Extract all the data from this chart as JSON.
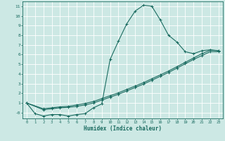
{
  "xlabel": "Humidex (Indice chaleur)",
  "bg_color": "#cce8e4",
  "line_color": "#1a6b60",
  "grid_color": "#ffffff",
  "xlim": [
    -0.5,
    23.5
  ],
  "ylim": [
    -0.6,
    11.5
  ],
  "xticks": [
    0,
    1,
    2,
    3,
    4,
    5,
    6,
    7,
    8,
    9,
    10,
    11,
    12,
    13,
    14,
    15,
    16,
    17,
    18,
    19,
    20,
    21,
    22,
    23
  ],
  "yticks": [
    0,
    1,
    2,
    3,
    4,
    5,
    6,
    7,
    8,
    9,
    10,
    11
  ],
  "ytick_labels": [
    "-0",
    "1",
    "2",
    "3",
    "4",
    "5",
    "6",
    "7",
    "8",
    "9",
    "10",
    "11"
  ],
  "curve1_x": [
    0,
    1,
    2,
    3,
    4,
    5,
    6,
    7,
    8,
    9,
    10,
    11,
    12,
    13,
    14,
    15,
    16,
    17,
    18,
    19,
    20,
    21,
    22,
    23
  ],
  "curve1_y": [
    1.0,
    -0.1,
    -0.35,
    -0.2,
    -0.2,
    -0.35,
    -0.2,
    -0.1,
    0.5,
    0.9,
    5.5,
    7.4,
    9.2,
    10.5,
    11.1,
    11.0,
    9.6,
    8.0,
    7.3,
    6.3,
    6.1,
    6.4,
    6.5,
    6.4
  ],
  "curve2_x": [
    0,
    2,
    3,
    4,
    5,
    6,
    7,
    8,
    9,
    10,
    11,
    12,
    13,
    14,
    15,
    16,
    17,
    18,
    19,
    20,
    21,
    22,
    23
  ],
  "curve2_y": [
    1.0,
    0.4,
    0.5,
    0.6,
    0.65,
    0.8,
    0.95,
    1.15,
    1.45,
    1.75,
    2.05,
    2.4,
    2.75,
    3.1,
    3.5,
    3.9,
    4.3,
    4.75,
    5.2,
    5.65,
    6.1,
    6.45,
    6.4
  ],
  "curve3_x": [
    0,
    2,
    3,
    4,
    5,
    6,
    7,
    8,
    9,
    10,
    11,
    12,
    13,
    14,
    15,
    16,
    17,
    18,
    19,
    20,
    21,
    22,
    23
  ],
  "curve3_y": [
    1.0,
    0.3,
    0.4,
    0.5,
    0.55,
    0.65,
    0.8,
    1.0,
    1.3,
    1.6,
    1.9,
    2.25,
    2.6,
    2.95,
    3.35,
    3.75,
    4.15,
    4.6,
    5.05,
    5.5,
    5.9,
    6.3,
    6.3
  ]
}
